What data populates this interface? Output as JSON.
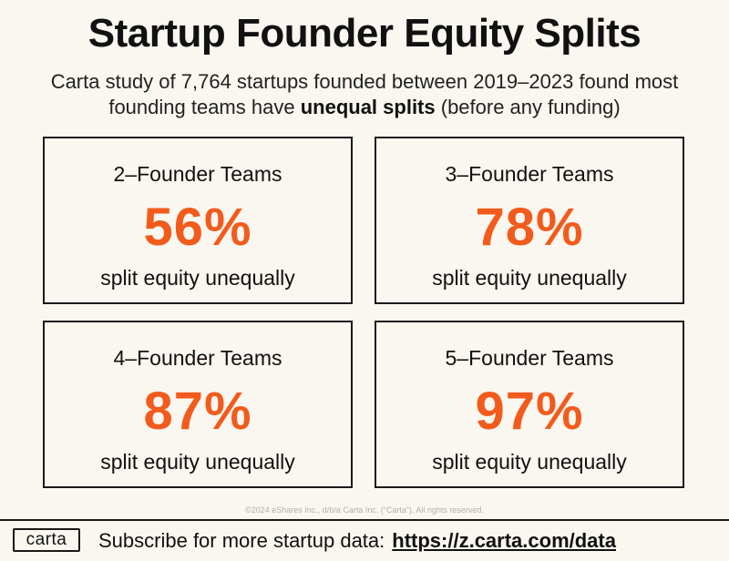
{
  "header": {
    "title": "Startup Founder Equity Splits",
    "subtitle_pre": "Carta study of 7,764 startups founded between 2019–2023 found most founding teams have ",
    "subtitle_bold": "unequal splits",
    "subtitle_post": " (before any funding)"
  },
  "cards": [
    {
      "team": "2–Founder Teams",
      "pct": "56%",
      "note": "split equity unequally"
    },
    {
      "team": "3–Founder Teams",
      "pct": "78%",
      "note": "split equity unequally"
    },
    {
      "team": "4–Founder Teams",
      "pct": "87%",
      "note": "split equity unequally"
    },
    {
      "team": "5–Founder Teams",
      "pct": "97%",
      "note": "split equity unequally"
    }
  ],
  "copyright": "©2024 eShares Inc., d/b/a Carta Inc. (“Carta”). All rights reserved.",
  "footer": {
    "logo": "carta",
    "subscribe": "Subscribe for more startup data:",
    "url": "https://z.carta.com/data"
  },
  "colors": {
    "accent": "#f25b1c",
    "background": "#faf7f0"
  }
}
